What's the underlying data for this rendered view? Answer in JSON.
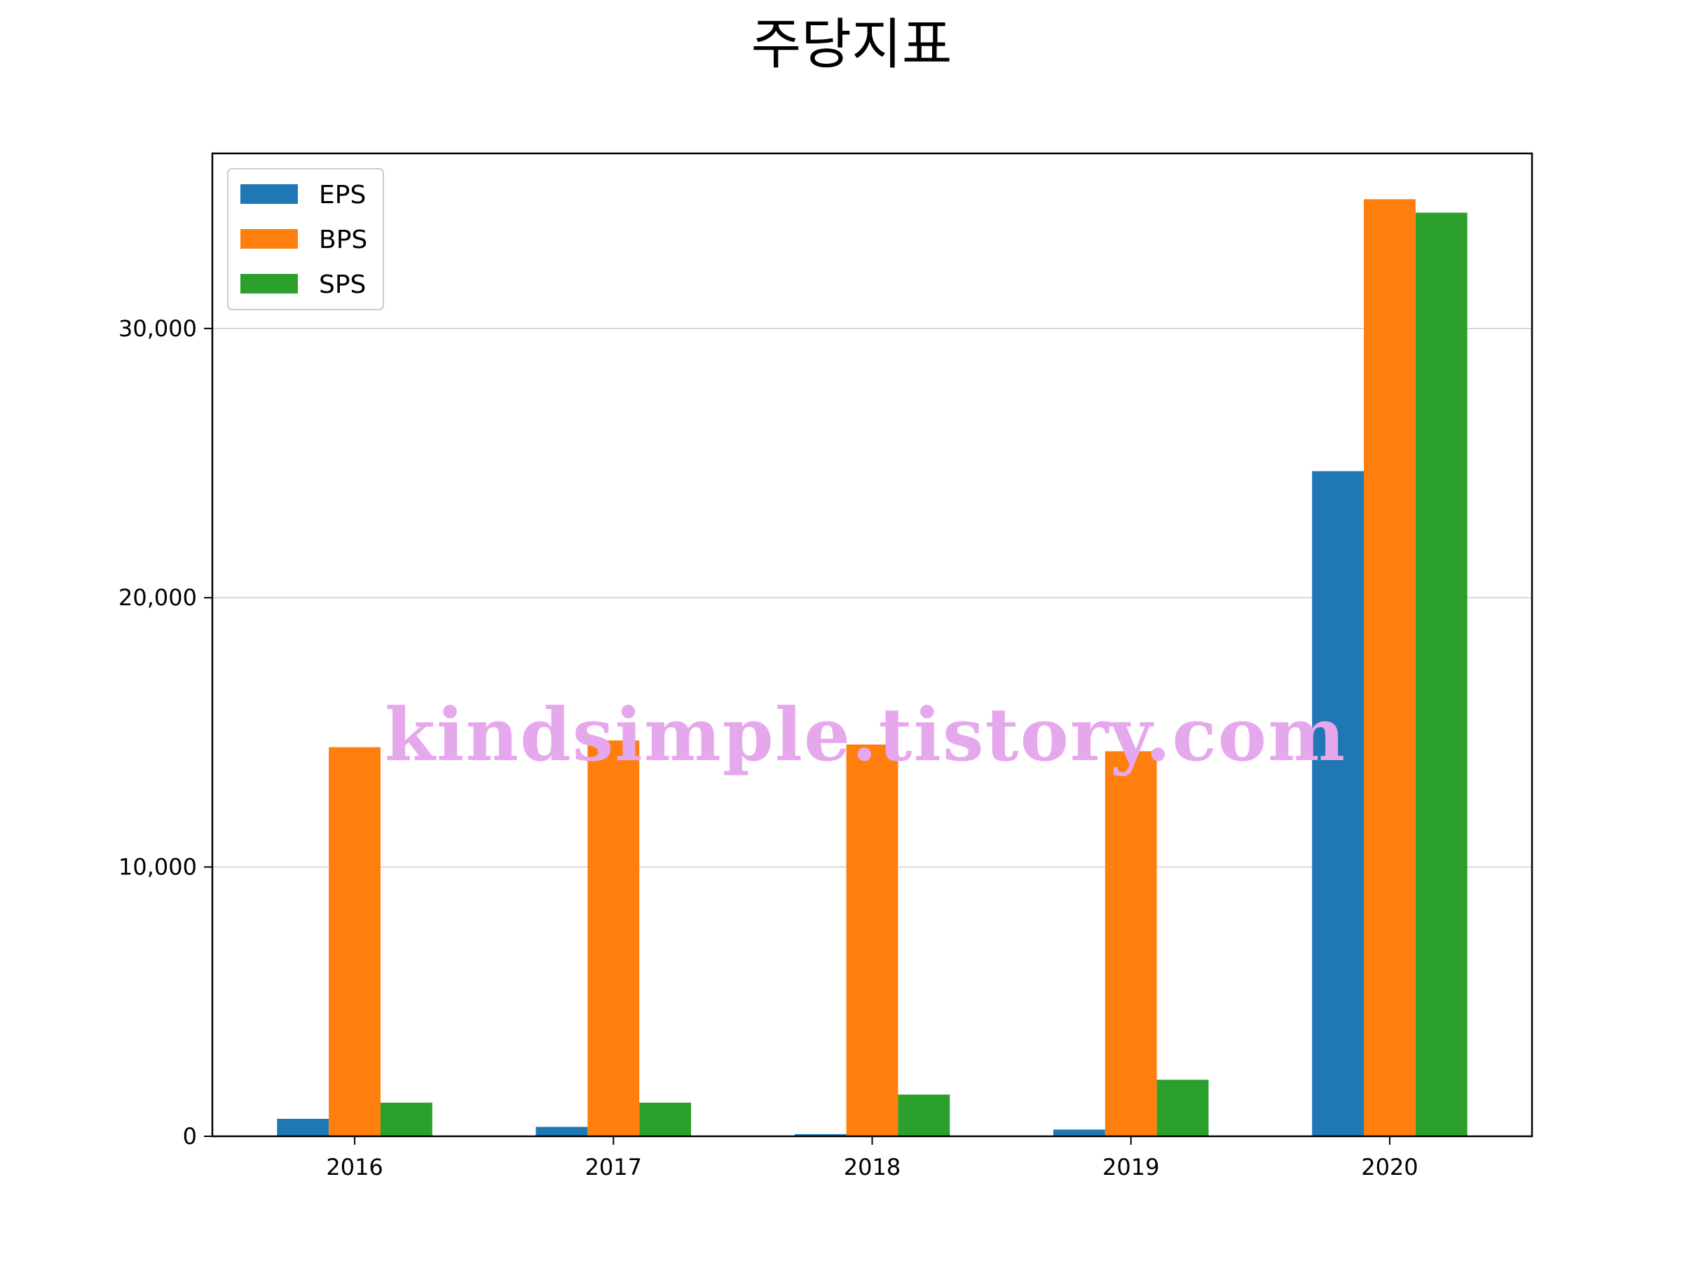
{
  "chart_data": {
    "type": "bar",
    "title": "주당지표",
    "xlabel": "",
    "ylabel": "",
    "categories": [
      "2016",
      "2017",
      "2018",
      "2019",
      "2020"
    ],
    "series": [
      {
        "name": "EPS",
        "color": "#1f77b4",
        "values": [
          650,
          350,
          80,
          250,
          24700
        ]
      },
      {
        "name": "BPS",
        "color": "#ff7f0e",
        "values": [
          14450,
          14700,
          14550,
          14300,
          34800
        ]
      },
      {
        "name": "SPS",
        "color": "#2ca02c",
        "values": [
          1250,
          1250,
          1550,
          2100,
          34300
        ]
      }
    ],
    "ylim": [
      0,
      36500
    ],
    "yticks": [
      0,
      10000,
      20000,
      30000
    ],
    "ytick_labels": [
      "0",
      "10,000",
      "20,000",
      "30,000"
    ],
    "grid": "y",
    "legend_position": "top-left",
    "watermark": "kindsimple.tistory.com"
  }
}
